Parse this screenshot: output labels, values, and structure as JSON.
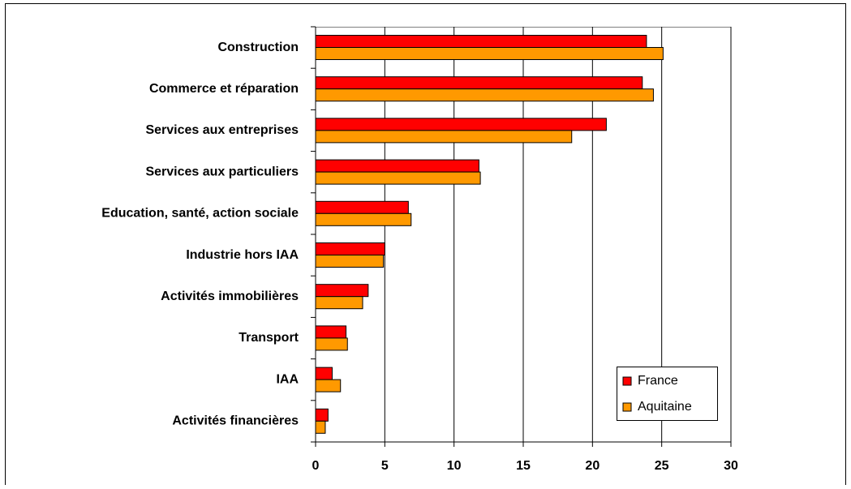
{
  "chart_data": {
    "type": "bar",
    "orientation": "horizontal",
    "categories": [
      "Construction",
      "Commerce et réparation",
      "Services aux entreprises",
      "Services aux particuliers",
      "Education, santé, action sociale",
      "Industrie hors IAA",
      "Activités immobilières",
      "Transport",
      "IAA",
      "Activités financières"
    ],
    "series": [
      {
        "name": "France",
        "color": "#ff0000",
        "values": [
          23.9,
          23.6,
          21.0,
          11.8,
          6.7,
          5.0,
          3.8,
          2.2,
          1.2,
          0.9
        ]
      },
      {
        "name": "Aquitaine",
        "color": "#ff9900",
        "values": [
          25.1,
          24.4,
          18.5,
          11.9,
          6.9,
          4.9,
          3.4,
          2.3,
          1.8,
          0.7
        ]
      }
    ],
    "xlim": [
      0,
      30
    ],
    "xticks": [
      0,
      5,
      10,
      15,
      20,
      25,
      30
    ],
    "grid": true,
    "legend": "lower right"
  }
}
